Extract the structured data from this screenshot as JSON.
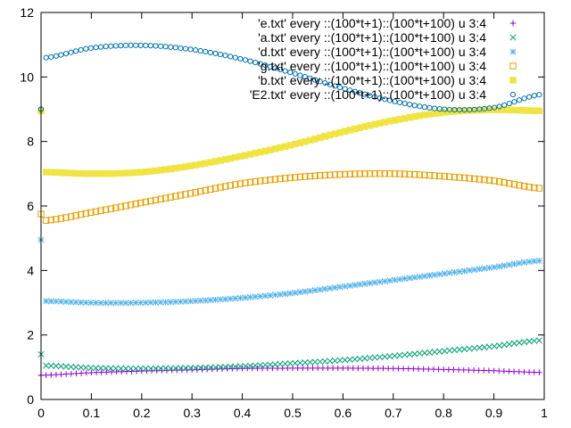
{
  "chart_data": {
    "type": "scatter",
    "title": "",
    "xlabel": "",
    "ylabel": "",
    "xlim": [
      0,
      1
    ],
    "ylim": [
      0,
      12
    ],
    "x_ticks": [
      "0",
      "0.1",
      "0.2",
      "0.3",
      "0.4",
      "0.5",
      "0.6",
      "0.7",
      "0.8",
      "0.9",
      "1"
    ],
    "y_ticks": [
      "0",
      "2",
      "4",
      "6",
      "8",
      "10",
      "12"
    ],
    "grid": false,
    "legend_position": "top-right",
    "points_per_series": 100,
    "series": [
      {
        "name": "'e.txt' every ::(100*t+1)::(100*t+100) u 3:4",
        "marker": "plus",
        "color": "#9400d3",
        "first_point": [
          0.0,
          0.75
        ],
        "x": [
          0.0,
          0.1,
          0.2,
          0.3,
          0.4,
          0.5,
          0.6,
          0.7,
          0.8,
          0.9,
          0.99
        ],
        "y": [
          0.75,
          0.83,
          0.88,
          0.92,
          0.96,
          0.97,
          0.97,
          0.96,
          0.93,
          0.89,
          0.84
        ]
      },
      {
        "name": "'a.txt' every ::(100*t+1)::(100*t+100) u 3:4",
        "marker": "cross",
        "color": "#009e73",
        "first_point": [
          0.0,
          1.4
        ],
        "x": [
          0.01,
          0.1,
          0.2,
          0.3,
          0.4,
          0.5,
          0.6,
          0.7,
          0.8,
          0.9,
          0.99
        ],
        "y": [
          1.05,
          0.98,
          0.96,
          0.98,
          1.03,
          1.12,
          1.22,
          1.35,
          1.5,
          1.65,
          1.83
        ]
      },
      {
        "name": "'d.txt' every ::(100*t+1)::(100*t+100) u 3:4",
        "marker": "star",
        "color": "#56b4e9",
        "first_point": [
          0.0,
          4.95
        ],
        "x": [
          0.01,
          0.1,
          0.2,
          0.3,
          0.4,
          0.5,
          0.6,
          0.7,
          0.8,
          0.9,
          0.99
        ],
        "y": [
          3.05,
          3.0,
          3.0,
          3.05,
          3.15,
          3.3,
          3.5,
          3.7,
          3.9,
          4.1,
          4.3
        ]
      },
      {
        "name": "'g.txt' every ::(100*t+1)::(100*t+100) u 3:4",
        "marker": "square-open",
        "color": "#e69f00",
        "first_point": [
          0.0,
          5.75
        ],
        "x": [
          0.01,
          0.1,
          0.2,
          0.3,
          0.4,
          0.5,
          0.6,
          0.7,
          0.8,
          0.9,
          0.99
        ],
        "y": [
          5.55,
          5.8,
          6.1,
          6.4,
          6.7,
          6.88,
          6.98,
          7.0,
          6.92,
          6.78,
          6.55
        ]
      },
      {
        "name": "'b.txt' every ::(100*t+1)::(100*t+100) u 3:4",
        "marker": "square-filled",
        "color": "#f0e442",
        "first_point": [
          0.0,
          8.95
        ],
        "x": [
          0.01,
          0.1,
          0.2,
          0.3,
          0.4,
          0.5,
          0.6,
          0.7,
          0.8,
          0.9,
          0.99
        ],
        "y": [
          7.05,
          7.0,
          7.05,
          7.25,
          7.55,
          7.9,
          8.3,
          8.65,
          8.9,
          8.98,
          8.95
        ]
      },
      {
        "name": "'E2.txt' every ::(100*t+1)::(100*t+100) u 3:4",
        "marker": "circle-open",
        "color": "#0072b2",
        "first_point": [
          0.0,
          9.0
        ],
        "x": [
          0.01,
          0.1,
          0.2,
          0.3,
          0.4,
          0.5,
          0.6,
          0.7,
          0.8,
          0.9,
          0.99
        ],
        "y": [
          10.6,
          10.9,
          10.98,
          10.85,
          10.55,
          10.12,
          9.65,
          9.25,
          9.0,
          9.05,
          9.45
        ]
      }
    ]
  }
}
